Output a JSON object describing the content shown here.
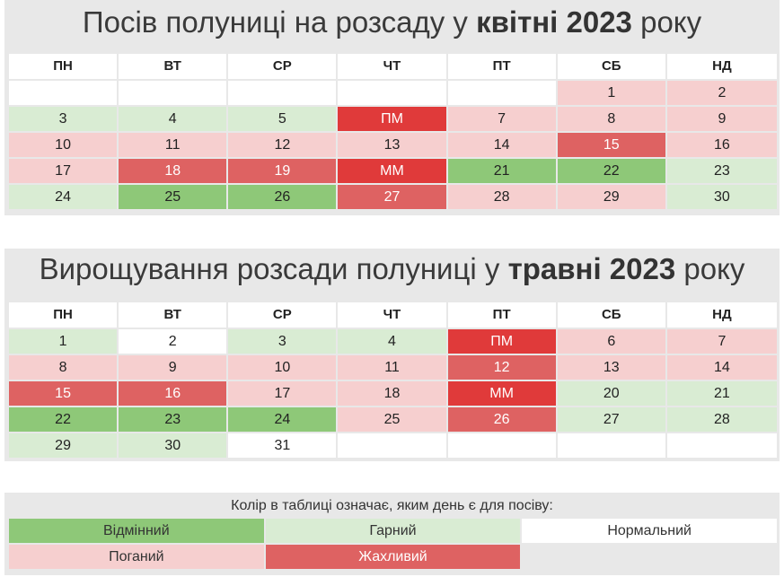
{
  "headers": [
    "ПН",
    "ВТ",
    "СР",
    "ЧТ",
    "ПТ",
    "СБ",
    "НД"
  ],
  "april": {
    "title_pre": "Посів полуниці на розсаду у ",
    "title_bold": "квітні 2023",
    "title_post": " року",
    "cells": [
      {
        "t": "",
        "c": "e"
      },
      {
        "t": "",
        "c": "e"
      },
      {
        "t": "",
        "c": "e"
      },
      {
        "t": "",
        "c": "e"
      },
      {
        "t": "",
        "c": "e"
      },
      {
        "t": "1",
        "c": "b"
      },
      {
        "t": "2",
        "c": "b"
      },
      {
        "t": "3",
        "c": "g"
      },
      {
        "t": "4",
        "c": "g"
      },
      {
        "t": "5",
        "c": "g"
      },
      {
        "t": "ПМ",
        "c": "r"
      },
      {
        "t": "7",
        "c": "b"
      },
      {
        "t": "8",
        "c": "b"
      },
      {
        "t": "9",
        "c": "b"
      },
      {
        "t": "10",
        "c": "b"
      },
      {
        "t": "11",
        "c": "b"
      },
      {
        "t": "12",
        "c": "b"
      },
      {
        "t": "13",
        "c": "b"
      },
      {
        "t": "14",
        "c": "b"
      },
      {
        "t": "15",
        "c": "t"
      },
      {
        "t": "16",
        "c": "b"
      },
      {
        "t": "17",
        "c": "b"
      },
      {
        "t": "18",
        "c": "t"
      },
      {
        "t": "19",
        "c": "t"
      },
      {
        "t": "ММ",
        "c": "r"
      },
      {
        "t": "21",
        "c": "x"
      },
      {
        "t": "22",
        "c": "x"
      },
      {
        "t": "23",
        "c": "g"
      },
      {
        "t": "24",
        "c": "g"
      },
      {
        "t": "25",
        "c": "x"
      },
      {
        "t": "26",
        "c": "x"
      },
      {
        "t": "27",
        "c": "t"
      },
      {
        "t": "28",
        "c": "b"
      },
      {
        "t": "29",
        "c": "b"
      },
      {
        "t": "30",
        "c": "g"
      }
    ]
  },
  "may": {
    "title_pre": "Вирощування розсади полуниці у ",
    "title_bold": "травні 2023",
    "title_post": " року",
    "cells": [
      {
        "t": "1",
        "c": "g"
      },
      {
        "t": "2",
        "c": "n"
      },
      {
        "t": "3",
        "c": "g"
      },
      {
        "t": "4",
        "c": "g"
      },
      {
        "t": "ПМ",
        "c": "r"
      },
      {
        "t": "6",
        "c": "b"
      },
      {
        "t": "7",
        "c": "b"
      },
      {
        "t": "8",
        "c": "b"
      },
      {
        "t": "9",
        "c": "b"
      },
      {
        "t": "10",
        "c": "b"
      },
      {
        "t": "11",
        "c": "b"
      },
      {
        "t": "12",
        "c": "t"
      },
      {
        "t": "13",
        "c": "b"
      },
      {
        "t": "14",
        "c": "b"
      },
      {
        "t": "15",
        "c": "t"
      },
      {
        "t": "16",
        "c": "t"
      },
      {
        "t": "17",
        "c": "b"
      },
      {
        "t": "18",
        "c": "b"
      },
      {
        "t": "ММ",
        "c": "r"
      },
      {
        "t": "20",
        "c": "g"
      },
      {
        "t": "21",
        "c": "g"
      },
      {
        "t": "22",
        "c": "x"
      },
      {
        "t": "23",
        "c": "x"
      },
      {
        "t": "24",
        "c": "x"
      },
      {
        "t": "25",
        "c": "b"
      },
      {
        "t": "26",
        "c": "t"
      },
      {
        "t": "27",
        "c": "g"
      },
      {
        "t": "28",
        "c": "g"
      },
      {
        "t": "29",
        "c": "g"
      },
      {
        "t": "30",
        "c": "g"
      },
      {
        "t": "31",
        "c": "n"
      },
      {
        "t": "",
        "c": "e"
      },
      {
        "t": "",
        "c": "e"
      },
      {
        "t": "",
        "c": "e"
      },
      {
        "t": "",
        "c": "e"
      }
    ]
  },
  "legend": {
    "caption": "Колір в таблиці означає, яким день є для посіву:",
    "items": [
      {
        "label": "Відмінний",
        "c": "x"
      },
      {
        "label": "Гарний",
        "c": "g"
      },
      {
        "label": "Нормальний",
        "c": "n"
      },
      {
        "label": "Поганий",
        "c": "b"
      },
      {
        "label": "Жахливий",
        "c": "t"
      }
    ]
  },
  "colors": {
    "excellent": "#8ec878",
    "good": "#d9ecd3",
    "normal": "#ffffff",
    "bad": "#f6cfcf",
    "terrible": "#de6262",
    "moon_phase": "#e03a3a"
  }
}
